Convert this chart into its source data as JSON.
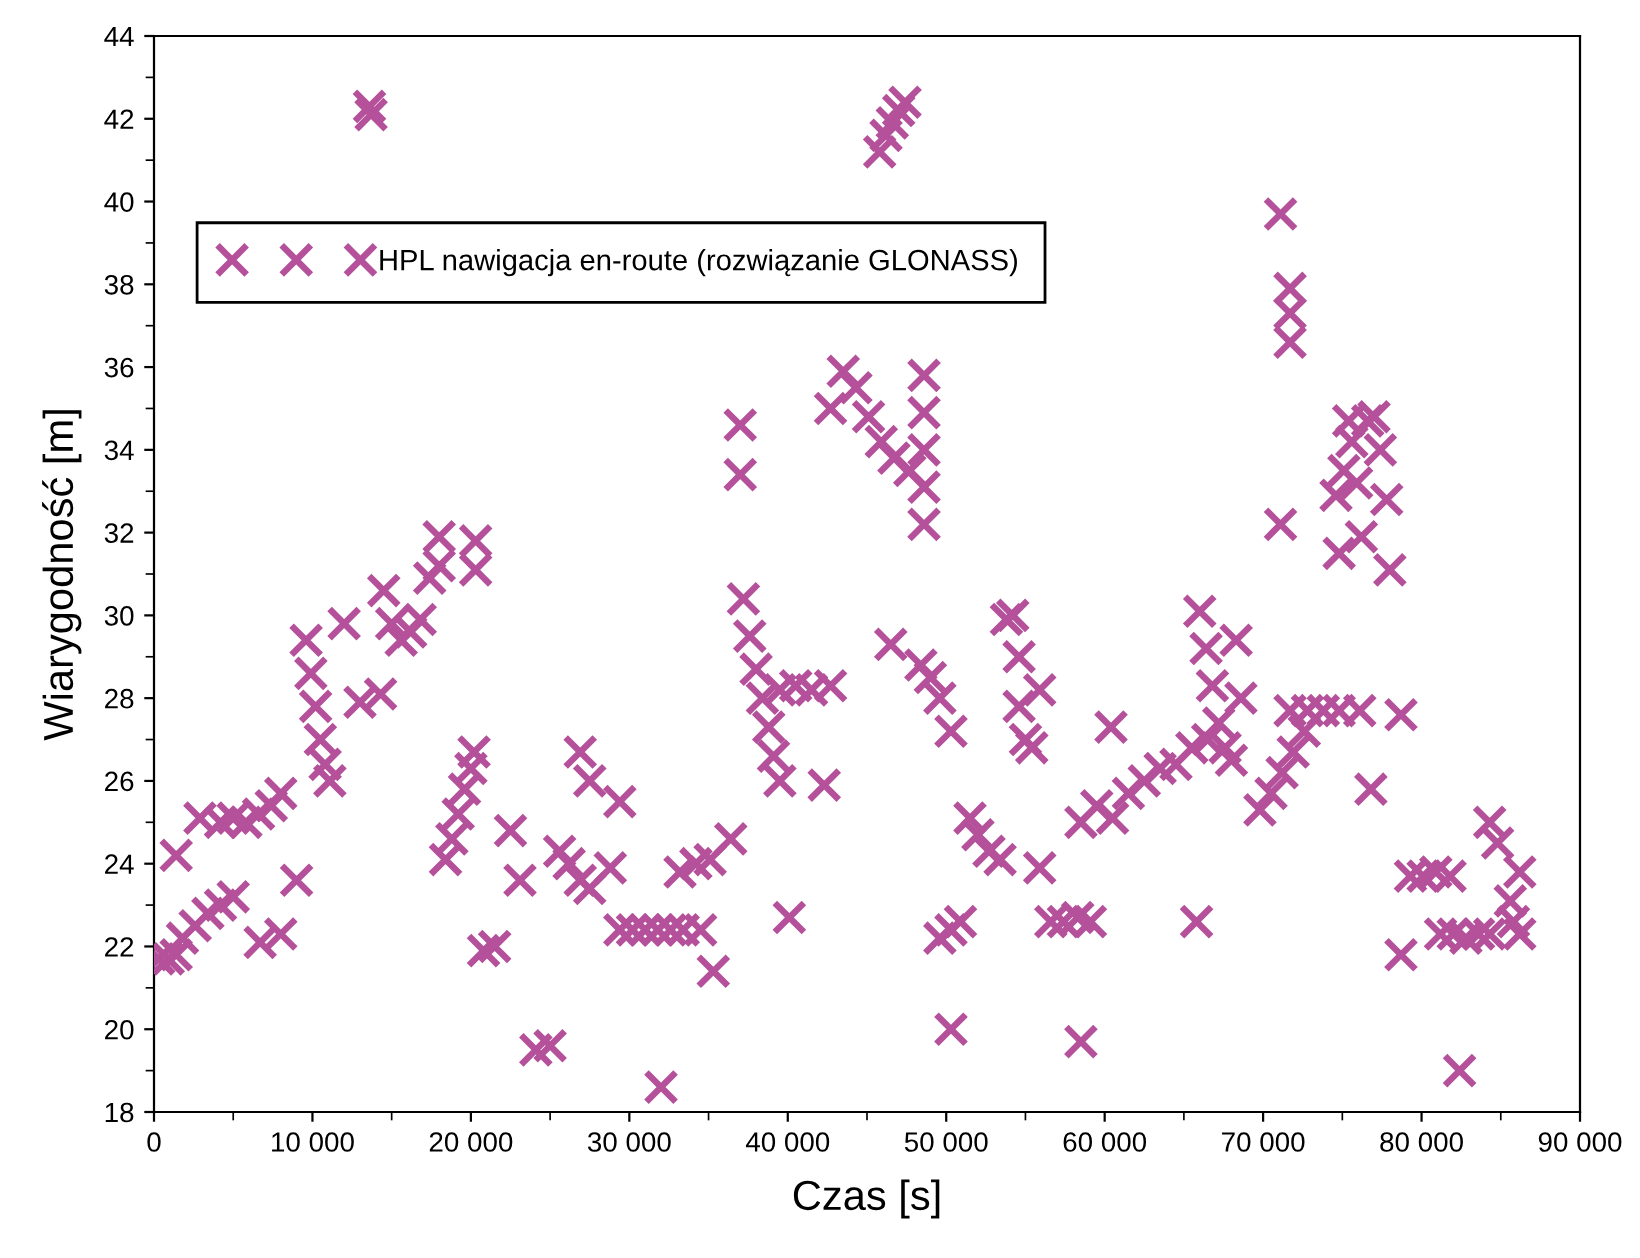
{
  "chart_data": {
    "type": "scatter",
    "xlabel": "Czas [s]",
    "ylabel": "Wiarygodność [m]",
    "xlim": [
      0,
      90000
    ],
    "ylim": [
      18,
      44
    ],
    "xticks": [
      0,
      {
        "value": 10000,
        "label": "10 000"
      },
      {
        "value": 20000,
        "label": "20 000"
      },
      {
        "value": 30000,
        "label": "30 000"
      },
      {
        "value": 40000,
        "label": "40 000"
      },
      {
        "value": 50000,
        "label": "50 000"
      },
      {
        "value": 60000,
        "label": "60 000"
      },
      {
        "value": 70000,
        "label": "70 000"
      },
      {
        "value": 80000,
        "label": "80 000"
      },
      {
        "value": 90000,
        "label": "90 000"
      }
    ],
    "yticks": [
      18,
      20,
      22,
      24,
      26,
      28,
      30,
      32,
      34,
      36,
      38,
      40,
      42,
      44
    ],
    "grid": false,
    "legend": "top left",
    "marker": "cross",
    "series": [
      {
        "name": "HPL nawigacja en-route (rozwiązanie GLONASS)",
        "color": "#b5509b",
        "x": [
          300,
          900,
          1400,
          1400,
          1800,
          2600,
          3400,
          4200,
          5000,
          2900,
          4200,
          5000,
          5800,
          6600,
          7400,
          8000,
          6700,
          8000,
          9000,
          9600,
          9900,
          10200,
          10500,
          10800,
          11100,
          12000,
          13000,
          14300,
          13600,
          13700,
          14500,
          15000,
          15600,
          16200,
          16800,
          17400,
          18000,
          18000,
          20300,
          20300,
          18400,
          18800,
          19200,
          19600,
          20000,
          20200,
          20800,
          21500,
          22500,
          23100,
          24100,
          25000,
          25600,
          26200,
          26900,
          27500,
          26900,
          27500,
          28800,
          29400,
          29400,
          30200,
          31000,
          31800,
          32600,
          33400,
          34500,
          32000,
          33200,
          34200,
          35100,
          35300,
          36400,
          37000,
          37000,
          37200,
          37600,
          38000,
          38400,
          38800,
          39100,
          39500,
          39500,
          40500,
          41500,
          42700,
          40100,
          42300,
          42700,
          43500,
          44300,
          45100,
          45900,
          46700,
          47700,
          48600,
          48600,
          48600,
          48600,
          48600,
          45800,
          46200,
          46600,
          47000,
          47400,
          46500,
          48400,
          49000,
          49600,
          50300,
          49600,
          50300,
          50900,
          50300,
          51500,
          52000,
          52700,
          53400,
          53800,
          54200,
          54600,
          54600,
          55000,
          55400,
          55900,
          55900,
          56600,
          57400,
          58300,
          59100,
          58500,
          60400,
          58500,
          59500,
          60500,
          61500,
          62500,
          63500,
          64500,
          65500,
          66500,
          65800,
          66000,
          66400,
          66800,
          67200,
          67600,
          68000,
          68600,
          68300,
          69800,
          70500,
          71200,
          71900,
          72600,
          71700,
          72800,
          73800,
          74800,
          76100,
          71100,
          71700,
          71700,
          71700,
          71100,
          74600,
          74800,
          75100,
          75400,
          75600,
          75900,
          76200,
          76600,
          77000,
          77400,
          77800,
          78000,
          76800,
          78700,
          78700,
          79300,
          80100,
          80900,
          81800,
          81200,
          82000,
          82800,
          83600,
          84300,
          82400,
          84300,
          84800,
          85600,
          86200,
          86200,
          85800
        ],
        "values": [
          21.7,
          21.7,
          21.8,
          24.2,
          22.2,
          22.5,
          22.8,
          23.0,
          23.2,
          25.1,
          25.0,
          25.1,
          25.0,
          25.2,
          25.4,
          25.7,
          22.1,
          22.3,
          23.6,
          29.4,
          28.6,
          27.8,
          27.0,
          26.4,
          26.0,
          29.8,
          27.9,
          28.1,
          42.3,
          42.1,
          30.6,
          29.8,
          29.4,
          29.6,
          29.9,
          30.9,
          31.9,
          31.2,
          31.8,
          31.1,
          24.1,
          24.6,
          25.2,
          25.8,
          26.3,
          26.7,
          21.9,
          22.0,
          24.8,
          23.6,
          19.5,
          19.6,
          24.3,
          24.0,
          23.6,
          23.4,
          26.7,
          26.0,
          23.9,
          25.5,
          22.4,
          22.4,
          22.4,
          22.4,
          22.4,
          22.4,
          22.4,
          18.6,
          23.8,
          24.0,
          24.1,
          21.4,
          24.6,
          34.6,
          33.4,
          30.4,
          29.5,
          28.7,
          28.0,
          27.3,
          26.6,
          26.0,
          28.2,
          28.3,
          28.2,
          28.3,
          22.7,
          25.9,
          35.0,
          35.9,
          35.5,
          34.8,
          34.2,
          33.8,
          33.5,
          35.8,
          34.9,
          34.0,
          33.1,
          32.2,
          41.2,
          41.6,
          41.9,
          42.2,
          42.4,
          29.3,
          28.8,
          28.5,
          28.0,
          27.2,
          22.2,
          22.4,
          22.6,
          20.0,
          25.1,
          24.7,
          24.3,
          24.1,
          29.9,
          30.0,
          29.0,
          27.8,
          27.0,
          26.8,
          28.2,
          23.9,
          22.6,
          22.6,
          22.7,
          22.6,
          19.7,
          27.3,
          25.0,
          25.4,
          25.1,
          25.7,
          26.0,
          26.3,
          26.4,
          26.8,
          27.0,
          22.6,
          30.1,
          29.2,
          28.3,
          27.4,
          26.8,
          26.5,
          28.0,
          29.4,
          25.3,
          25.7,
          26.2,
          26.7,
          27.2,
          27.7,
          27.7,
          27.7,
          27.7,
          27.7,
          39.7,
          37.9,
          37.3,
          36.6,
          32.2,
          32.9,
          31.5,
          33.5,
          34.7,
          34.2,
          33.2,
          31.9,
          34.7,
          34.8,
          34.0,
          32.8,
          31.1,
          25.8,
          27.6,
          21.8,
          23.7,
          23.7,
          23.8,
          23.7,
          22.3,
          22.3,
          22.2,
          22.3,
          22.3,
          19.0,
          25.0,
          24.5,
          23.1,
          23.8,
          22.3,
          22.6
        ]
      }
    ]
  }
}
